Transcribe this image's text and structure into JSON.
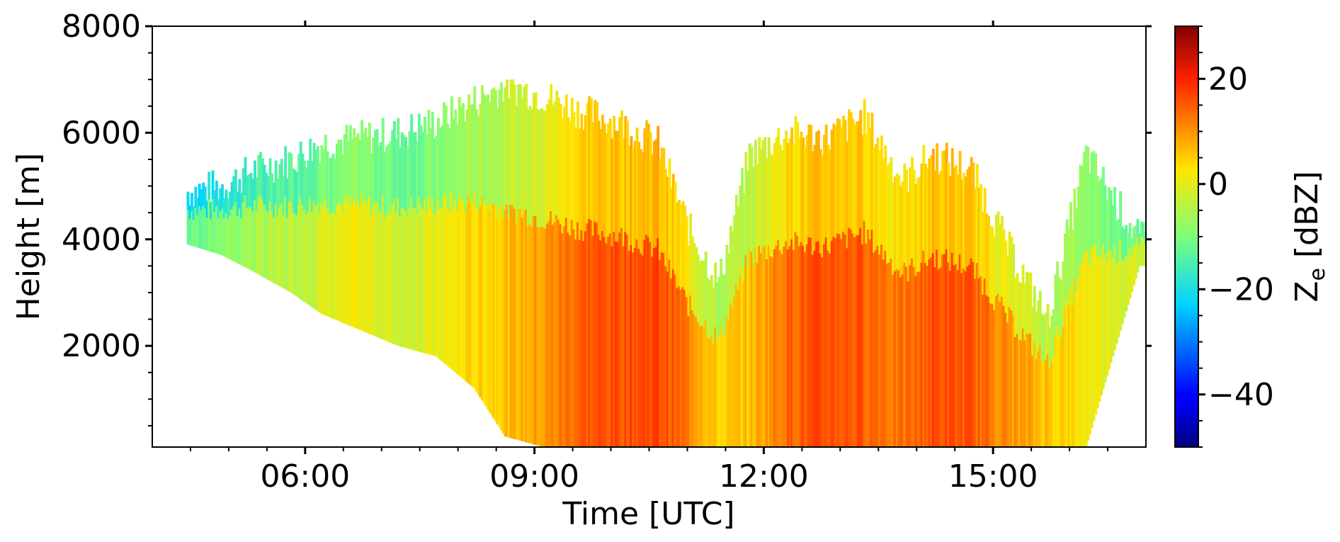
{
  "chart_data": {
    "type": "heatmap",
    "title": "",
    "xlabel": "Time [UTC]",
    "ylabel": "Height [m]",
    "xlim_hours": [
      4.0,
      17.0
    ],
    "ylim": [
      100,
      8000
    ],
    "x_ticks": [
      {
        "value": 6,
        "label": "06:00"
      },
      {
        "value": 9,
        "label": "09:00"
      },
      {
        "value": 12,
        "label": "12:00"
      },
      {
        "value": 15,
        "label": "15:00"
      }
    ],
    "y_ticks": [
      {
        "value": 2000,
        "label": "2000"
      },
      {
        "value": 4000,
        "label": "4000"
      },
      {
        "value": 6000,
        "label": "6000"
      },
      {
        "value": 8000,
        "label": "8000"
      }
    ],
    "colorbar": {
      "label_main": "Z",
      "label_sub": "e",
      "label_unit": " [dBZ]",
      "range": [
        -50,
        30
      ],
      "colormap": "jet",
      "ticks": [
        {
          "value": 20,
          "label": "20"
        },
        {
          "value": 0,
          "label": "0"
        },
        {
          "value": -20,
          "label": "−20"
        },
        {
          "value": -40,
          "label": "−40"
        }
      ]
    },
    "cloud_columns_estimated": [
      {
        "t": 4.45,
        "base": 3900,
        "top": 4900,
        "z": -12
      },
      {
        "t": 4.9,
        "base": 3700,
        "top": 5000,
        "z": -9
      },
      {
        "t": 5.3,
        "base": 3400,
        "top": 5300,
        "z": -6
      },
      {
        "t": 5.8,
        "base": 3000,
        "top": 5500,
        "z": -4
      },
      {
        "t": 6.2,
        "base": 2600,
        "top": 5800,
        "z": -1
      },
      {
        "t": 6.7,
        "base": 2300,
        "top": 5900,
        "z": 1
      },
      {
        "t": 7.2,
        "base": 2000,
        "top": 6000,
        "z": -2
      },
      {
        "t": 7.7,
        "base": 1800,
        "top": 6200,
        "z": 0
      },
      {
        "t": 8.2,
        "base": 1200,
        "top": 6600,
        "z": 4
      },
      {
        "t": 8.6,
        "base": 300,
        "top": 6900,
        "z": 6
      },
      {
        "t": 9.1,
        "base": 100,
        "top": 6700,
        "z": 9
      },
      {
        "t": 9.6,
        "base": 100,
        "top": 6400,
        "z": 15
      },
      {
        "t": 10.1,
        "base": 100,
        "top": 6200,
        "z": 16
      },
      {
        "t": 10.6,
        "base": 100,
        "top": 5800,
        "z": 17
      },
      {
        "t": 11.0,
        "base": 100,
        "top": 4200,
        "z": 12
      },
      {
        "t": 11.4,
        "base": 100,
        "top": 3200,
        "z": 4
      },
      {
        "t": 11.8,
        "base": 100,
        "top": 5600,
        "z": 6
      },
      {
        "t": 12.3,
        "base": 100,
        "top": 6000,
        "z": 14
      },
      {
        "t": 12.8,
        "base": 100,
        "top": 5900,
        "z": 16
      },
      {
        "t": 13.3,
        "base": 100,
        "top": 6300,
        "z": 15
      },
      {
        "t": 13.8,
        "base": 100,
        "top": 5100,
        "z": 12
      },
      {
        "t": 14.2,
        "base": 100,
        "top": 5600,
        "z": 16
      },
      {
        "t": 14.7,
        "base": 100,
        "top": 5300,
        "z": 15
      },
      {
        "t": 15.2,
        "base": 100,
        "top": 3800,
        "z": 10
      },
      {
        "t": 15.7,
        "base": 100,
        "top": 2500,
        "z": 6
      },
      {
        "t": 16.2,
        "base": 100,
        "top": 5600,
        "z": 2
      },
      {
        "t": 16.9,
        "base": 3500,
        "top": 4000,
        "z": -2
      }
    ]
  }
}
